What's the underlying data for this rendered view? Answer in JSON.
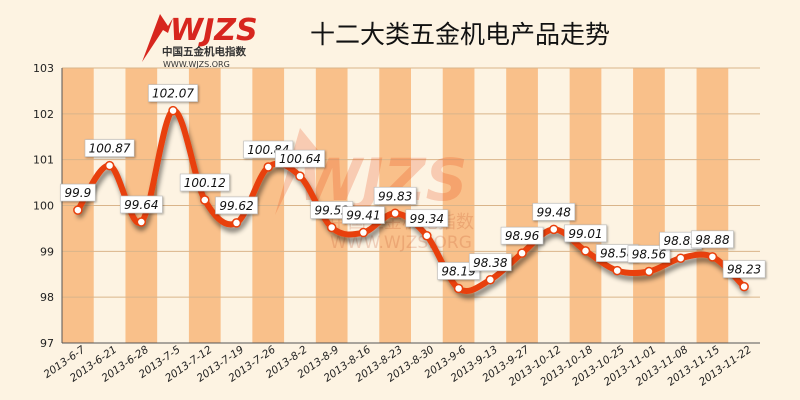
{
  "logo": {
    "brand": "WJZS",
    "name": "中国五金机电指数",
    "url": "WWW.WJZS.ORG"
  },
  "chart_data": {
    "type": "line",
    "title": "十二大类五金机电产品走势",
    "xlabel": "",
    "ylabel": "",
    "ylim": [
      97,
      103
    ],
    "yticks": [
      97,
      98,
      99,
      100,
      101,
      102,
      103
    ],
    "grid": true,
    "categories": [
      "2013-6-7",
      "2013-6-21",
      "2013-6-28",
      "2013-7-5",
      "2013-7-12",
      "2013-7-19",
      "2013-7-26",
      "2013-8-2",
      "2013-8-9",
      "2013-8-16",
      "2013-8-23",
      "2013-8-30",
      "2013-9-6",
      "2013-9-13",
      "2013-9-27",
      "2013-10-12",
      "2013-10-18",
      "2013-10-25",
      "2013-11-01",
      "2013-11-08",
      "2013-11-15",
      "2013-11-22"
    ],
    "series": [
      {
        "values": [
          99.9,
          100.87,
          99.64,
          102.07,
          100.12,
          99.62,
          100.84,
          100.64,
          99.52,
          99.41,
          99.83,
          99.34,
          98.19,
          98.38,
          98.96,
          99.48,
          99.01,
          98.58,
          98.56,
          98.85,
          98.88,
          98.23
        ]
      }
    ],
    "colors": {
      "line": "#e8400c",
      "band": "#f9c08a",
      "background": "#fdf3e2"
    }
  }
}
